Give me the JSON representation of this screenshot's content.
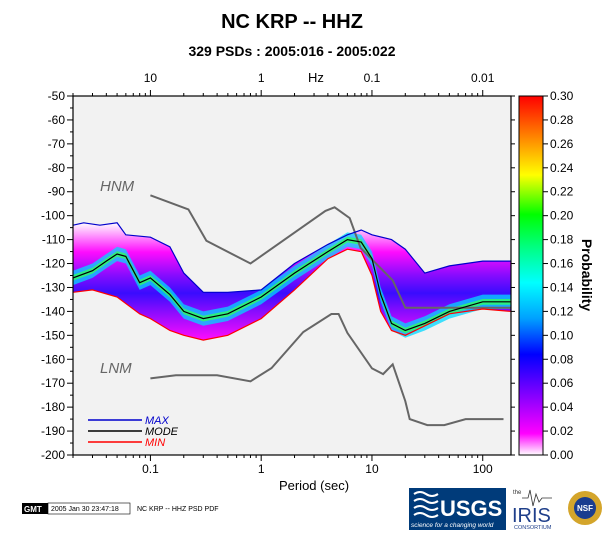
{
  "chart_data": {
    "type": "heatmap",
    "title": "NC KRP -- HHZ",
    "subtitle": "329 PSDs : 2005:016 - 2005:022",
    "xlabel": "Period (sec)",
    "xlabel_top": "Hz",
    "colorbar_label": "Probability",
    "x_scale": "log",
    "xlim": [
      0.02,
      180
    ],
    "ylim": [
      -200,
      -50
    ],
    "grid": false,
    "legend_position": "bottom-left",
    "bottom_ticks": [
      "0.1",
      "1",
      "10",
      "100"
    ],
    "bottom_tick_values": [
      0.1,
      1,
      10,
      100
    ],
    "top_ticks": [
      "10",
      "1",
      "0.1",
      "0.01"
    ],
    "top_tick_values": [
      0.1,
      1,
      10,
      100
    ],
    "y_ticks": [
      "-50",
      "-60",
      "-70",
      "-80",
      "-90",
      "-100",
      "-110",
      "-120",
      "-130",
      "-140",
      "-150",
      "-160",
      "-170",
      "-180",
      "-190",
      "-200"
    ],
    "y_tick_values": [
      -50,
      -60,
      -70,
      -80,
      -90,
      -100,
      -110,
      -120,
      -130,
      -140,
      -150,
      -160,
      -170,
      -180,
      -190,
      -200
    ],
    "colorbar": {
      "range": [
        0,
        0.3
      ],
      "ticks": [
        "0.30",
        "0.28",
        "0.26",
        "0.24",
        "0.22",
        "0.20",
        "0.18",
        "0.16",
        "0.14",
        "0.12",
        "0.10",
        "0.08",
        "0.06",
        "0.04",
        "0.02",
        "0.00"
      ],
      "tick_values": [
        0.3,
        0.28,
        0.26,
        0.24,
        0.22,
        0.2,
        0.18,
        0.16,
        0.14,
        0.12,
        0.1,
        0.08,
        0.06,
        0.04,
        0.02,
        0.0
      ],
      "colors": [
        "#ffffff",
        "#ff00ff",
        "#8000ff",
        "#0000ff",
        "#00a0ff",
        "#00ffff",
        "#00ff80",
        "#00ff00",
        "#ffff00",
        "#ff8000",
        "#ff0000"
      ]
    },
    "labels": {
      "hnm": "HNM",
      "lnm": "LNM"
    },
    "legend": [
      {
        "label": "MAX",
        "color": "#0000cc"
      },
      {
        "label": "MODE",
        "color": "#000000"
      },
      {
        "label": "MIN",
        "color": "#ff0000"
      }
    ],
    "series": {
      "hnm": {
        "x": [
          0.1,
          0.22,
          0.32,
          0.8,
          3.8,
          4.6,
          6.3,
          7.9,
          15.4,
          20,
          354
        ],
        "y": [
          -91.5,
          -97.4,
          -110.5,
          -120,
          -98,
          -96.5,
          -101,
          -113.5,
          -127,
          -138.5,
          -138.5
        ]
      },
      "lnm": {
        "x": [
          0.1,
          0.17,
          0.4,
          0.8,
          1.24,
          2.4,
          4.3,
          5,
          6,
          10,
          12.6,
          15.4,
          20,
          21.9,
          31.6,
          45,
          70,
          101,
          154
        ],
        "y": [
          -168,
          -166.7,
          -166.7,
          -169.2,
          -163.7,
          -148.6,
          -141.1,
          -141.1,
          -149,
          -163.8,
          -166.2,
          -162.1,
          -177.5,
          -185,
          -187.5,
          -187.5,
          -185,
          -185,
          -185
        ]
      },
      "max": {
        "x": [
          0.02,
          0.025,
          0.035,
          0.05,
          0.06,
          0.1,
          0.15,
          0.2,
          0.3,
          0.5,
          1,
          2,
          4,
          6,
          8,
          10,
          15,
          20,
          30,
          50,
          100,
          180
        ],
        "y": [
          -104,
          -103,
          -104,
          -103,
          -108,
          -109,
          -113,
          -124,
          -132,
          -132,
          -131,
          -120,
          -112,
          -108,
          -106,
          -108,
          -110,
          -114,
          -124,
          -121,
          -119,
          -119
        ]
      },
      "mode": {
        "x": [
          0.02,
          0.03,
          0.04,
          0.05,
          0.06,
          0.08,
          0.1,
          0.15,
          0.2,
          0.3,
          0.5,
          1,
          2,
          4,
          6,
          8,
          10,
          12,
          15,
          20,
          30,
          50,
          100,
          180
        ],
        "y": [
          -126,
          -123,
          -119,
          -116,
          -117,
          -128,
          -126,
          -133,
          -140,
          -143,
          -141,
          -134,
          -124,
          -115,
          -110,
          -111,
          -118,
          -133,
          -145,
          -148,
          -145,
          -140,
          -136,
          -136
        ]
      },
      "min": {
        "x": [
          0.02,
          0.03,
          0.05,
          0.08,
          0.1,
          0.15,
          0.2,
          0.3,
          0.5,
          1,
          2,
          4,
          6,
          8,
          10,
          12,
          15,
          20,
          30,
          50,
          100,
          180
        ],
        "y": [
          -132,
          -131,
          -134,
          -141,
          -143,
          -148,
          -150,
          -152,
          -150,
          -143,
          -131,
          -118,
          -114,
          -115,
          -125,
          -140,
          -148,
          -150,
          -146,
          -141,
          -139,
          -140
        ]
      }
    }
  },
  "footer": {
    "gmt_badge": "GMT",
    "timestamp": "2005 Jan 30 23:47:18",
    "caption": "NC KRP -- HHZ PSD PDF"
  },
  "logos": {
    "usgs": "USGS",
    "usgs_tagline": "science for a changing world",
    "iris_prefix": "the",
    "iris": "IRIS",
    "iris_sub": "CONSORTIUM",
    "nsf": "NSF"
  }
}
